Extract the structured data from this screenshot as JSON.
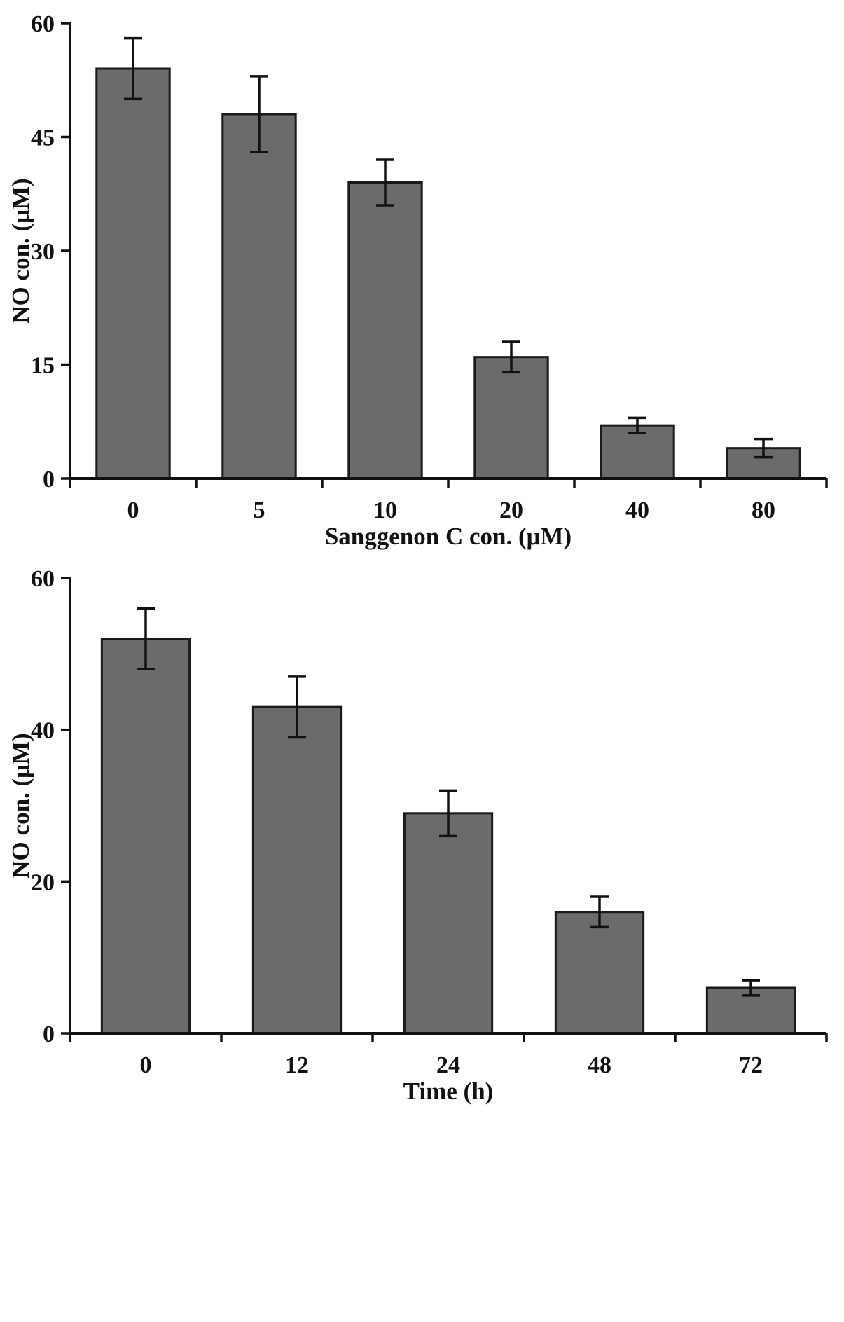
{
  "page": {
    "background": "#ffffff",
    "axis_color": "#111111"
  },
  "chart_data": [
    {
      "type": "bar",
      "title": "",
      "categories": [
        "0",
        "5",
        "10",
        "20",
        "40",
        "80"
      ],
      "values": [
        54,
        48,
        39,
        16,
        7,
        4
      ],
      "errors": [
        4,
        5,
        3,
        2,
        1,
        1.2
      ],
      "xlabel": "Sanggenon C con. (μM)",
      "ylabel": "NO con. (μM)",
      "ylim": [
        0,
        60
      ],
      "yticks": [
        0,
        15,
        30,
        45,
        60
      ],
      "grid": false,
      "legend": "none",
      "bar_color": "#6b6b6b",
      "bar_border": "#1a1a1a",
      "error_color": "#111111"
    },
    {
      "type": "bar",
      "title": "",
      "categories": [
        "0",
        "12",
        "24",
        "48",
        "72"
      ],
      "values": [
        52,
        43,
        29,
        16,
        6
      ],
      "errors": [
        4,
        4,
        3,
        2,
        1
      ],
      "xlabel": "Time (h)",
      "ylabel": "NO con. (μM)",
      "ylim": [
        0,
        60
      ],
      "yticks": [
        0,
        20,
        40,
        60
      ],
      "grid": false,
      "legend": "none",
      "bar_color": "#6b6b6b",
      "bar_border": "#1a1a1a",
      "error_color": "#111111"
    }
  ]
}
